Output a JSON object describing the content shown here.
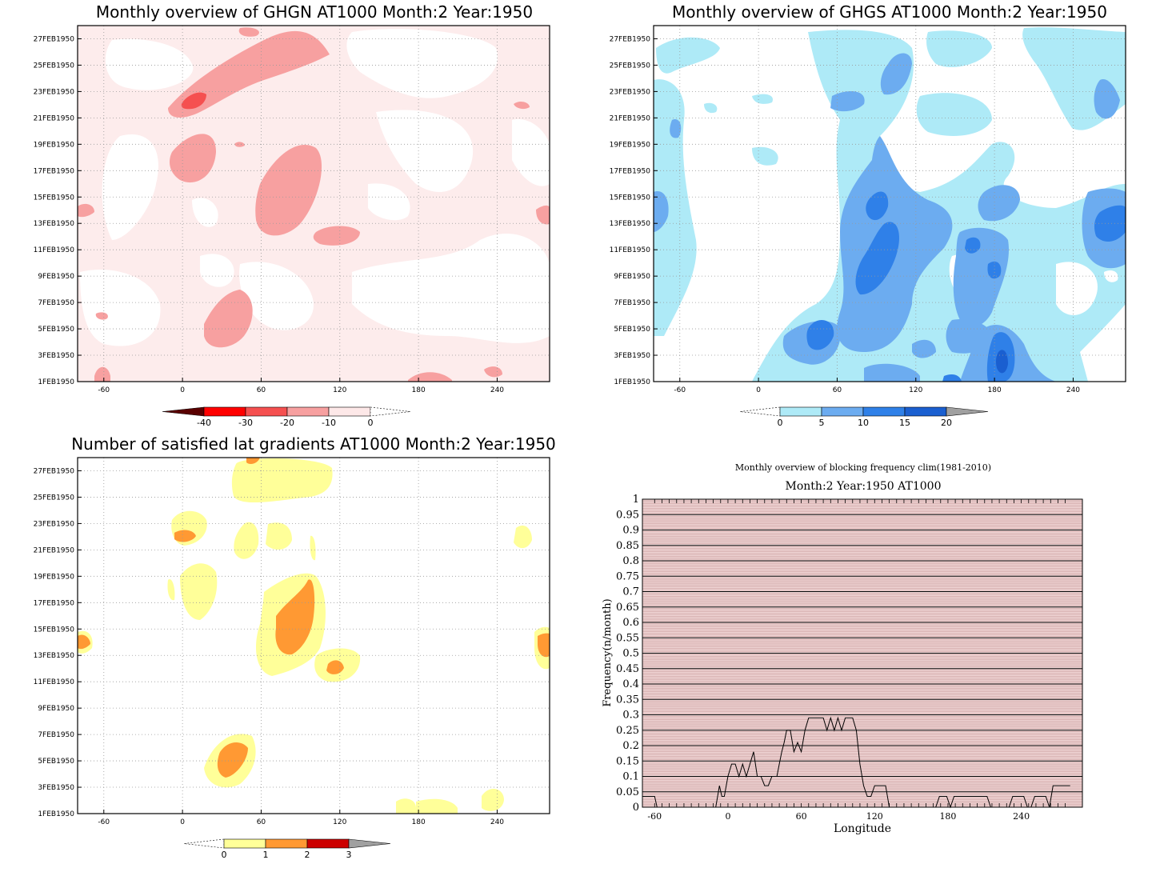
{
  "chart_data": [
    {
      "type": "heatmap",
      "title": "Monthly overview of GHGN AT1000 Month:2 Year:1950",
      "x_ticks": [
        "-60",
        "0",
        "60",
        "120",
        "180",
        "240"
      ],
      "y_ticks": [
        "1FEB1950",
        "3FEB1950",
        "5FEB1950",
        "7FEB1950",
        "9FEB1950",
        "11FEB1950",
        "13FEB1950",
        "15FEB1950",
        "17FEB1950",
        "19FEB1950",
        "21FEB1950",
        "23FEB1950",
        "25FEB1950",
        "27FEB1950"
      ],
      "xlim": [
        -80,
        280
      ],
      "colorbar": {
        "labels": [
          "-40",
          "-30",
          "-20",
          "-10",
          "0"
        ],
        "colors": [
          "#5a0000",
          "#ff0000",
          "#f55050",
          "#f7a0a0",
          "#fde8e8"
        ]
      },
      "grid": true
    },
    {
      "type": "heatmap",
      "title": "Monthly overview of GHGS AT1000 Month:2 Year:1950",
      "x_ticks": [
        "-60",
        "0",
        "60",
        "120",
        "180",
        "240"
      ],
      "y_ticks": [
        "1FEB1950",
        "3FEB1950",
        "5FEB1950",
        "7FEB1950",
        "9FEB1950",
        "11FEB1950",
        "13FEB1950",
        "15FEB1950",
        "17FEB1950",
        "19FEB1950",
        "21FEB1950",
        "23FEB1950",
        "25FEB1950",
        "27FEB1950"
      ],
      "xlim": [
        -80,
        280
      ],
      "colorbar": {
        "labels": [
          "0",
          "5",
          "10",
          "15",
          "20"
        ],
        "colors": [
          "#aeeaf7",
          "#6cacf0",
          "#2f80e8",
          "#1a5fd0",
          "#a0a0a0"
        ]
      },
      "grid": true
    },
    {
      "type": "heatmap",
      "title": "Number of satisfied lat gradients AT1000 Month:2 Year:1950",
      "x_ticks": [
        "-60",
        "0",
        "60",
        "120",
        "180",
        "240"
      ],
      "y_ticks": [
        "1FEB1950",
        "3FEB1950",
        "5FEB1950",
        "7FEB1950",
        "9FEB1950",
        "11FEB1950",
        "13FEB1950",
        "15FEB1950",
        "17FEB1950",
        "19FEB1950",
        "21FEB1950",
        "23FEB1950",
        "25FEB1950",
        "27FEB1950"
      ],
      "xlim": [
        -80,
        280
      ],
      "colorbar": {
        "labels": [
          "0",
          "1",
          "2",
          "3"
        ],
        "colors": [
          "#ffff99",
          "#ff9933",
          "#cc0000",
          "#a0a0a0"
        ]
      },
      "grid": true
    },
    {
      "type": "line",
      "title": "Monthly overview of blocking frequency clim(1981-2010)",
      "subtitle": "Month:2 Year:1950  AT1000",
      "xlabel": "Longitude",
      "ylabel": "Frequency(n/month)",
      "xlim": [
        -70,
        290
      ],
      "ylim": [
        0,
        1
      ],
      "x_ticks": [
        "-60",
        "0",
        "60",
        "120",
        "180",
        "240"
      ],
      "y_ticks": [
        "0",
        "0.05",
        "0.1",
        "0.15",
        "0.2",
        "0.25",
        "0.3",
        "0.35",
        "0.4",
        "0.45",
        "0.5",
        "0.55",
        "0.6",
        "0.65",
        "0.7",
        "0.75",
        "0.8",
        "0.85",
        "0.9",
        "0.95",
        "1"
      ],
      "series": [
        {
          "x": [
            -70,
            -62,
            -60,
            -58,
            -10,
            -7,
            -5,
            -3,
            0,
            3,
            6,
            9,
            12,
            15,
            18,
            21,
            24,
            27,
            30,
            33,
            36,
            40,
            42,
            44,
            46,
            48,
            51,
            54,
            57,
            60,
            63,
            66,
            69,
            72,
            75,
            78,
            81,
            84,
            87,
            90,
            93,
            96,
            99,
            102,
            105,
            108,
            111,
            114,
            117,
            120,
            123,
            126,
            129,
            132,
            170,
            173,
            176,
            179,
            182,
            185,
            188,
            191,
            194,
            197,
            200,
            203,
            206,
            209,
            212,
            215,
            230,
            233,
            236,
            239,
            242,
            245,
            248,
            251,
            254,
            257,
            260,
            263,
            266,
            269,
            272,
            275,
            280
          ],
          "y": [
            0.035,
            0.035,
            0.035,
            0,
            0,
            0.07,
            0.035,
            0.035,
            0.1,
            0.14,
            0.14,
            0.1,
            0.14,
            0.1,
            0.14,
            0.18,
            0.1,
            0.1,
            0.07,
            0.07,
            0.1,
            0.1,
            0.14,
            0.18,
            0.21,
            0.25,
            0.25,
            0.18,
            0.21,
            0.18,
            0.25,
            0.29,
            0.29,
            0.29,
            0.29,
            0.29,
            0.25,
            0.29,
            0.25,
            0.29,
            0.25,
            0.29,
            0.29,
            0.29,
            0.25,
            0.14,
            0.07,
            0.035,
            0.035,
            0.07,
            0.07,
            0.07,
            0.07,
            0,
            0,
            0.035,
            0.035,
            0.035,
            0,
            0.035,
            0.035,
            0.035,
            0.035,
            0.035,
            0.035,
            0.035,
            0.035,
            0.035,
            0.035,
            0,
            0,
            0.035,
            0.035,
            0.035,
            0.035,
            0,
            0,
            0.035,
            0.035,
            0.035,
            0.035,
            0,
            0.07,
            0.07,
            0.07,
            0.07,
            0.07
          ]
        }
      ]
    }
  ]
}
